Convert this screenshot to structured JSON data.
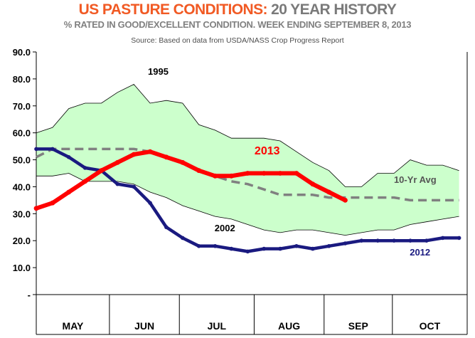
{
  "header": {
    "title_main": "US PASTURE CONDITIONS",
    "title_sep": ": ",
    "title_rest": "20 YEAR HISTORY",
    "subtitle": "% RATED IN GOOD/EXCELLENT CONDITION.  WEEK ENDING SEPTEMBER 8, 2013",
    "source": "Source:  Based on data from USDA/NASS Crop Progress Report"
  },
  "chart_data": {
    "type": "line",
    "ylim": [
      0,
      90
    ],
    "yticks": [
      {
        "v": 0,
        "label": "-"
      },
      {
        "v": 10,
        "label": "10.0"
      },
      {
        "v": 20,
        "label": "20.0"
      },
      {
        "v": 30,
        "label": "30.0"
      },
      {
        "v": 40,
        "label": "40.0"
      },
      {
        "v": 50,
        "label": "50.0"
      },
      {
        "v": 60,
        "label": "60.0"
      },
      {
        "v": 70,
        "label": "70.0"
      },
      {
        "v": 80,
        "label": "80.0"
      },
      {
        "v": 90,
        "label": "90.0"
      }
    ],
    "xlim": [
      0,
      26.5
    ],
    "months": [
      {
        "label": "MAY",
        "start": 0,
        "end": 4.5
      },
      {
        "label": "JUN",
        "start": 4.5,
        "end": 8.8
      },
      {
        "label": "JUL",
        "start": 8.8,
        "end": 13.4
      },
      {
        "label": "AUG",
        "start": 13.4,
        "end": 17.7
      },
      {
        "label": "SEP",
        "start": 17.7,
        "end": 21.9
      },
      {
        "label": "OCT",
        "start": 21.9,
        "end": 26.5
      }
    ],
    "range_band": {
      "max": [
        [
          0,
          60
        ],
        [
          1,
          62
        ],
        [
          2,
          69
        ],
        [
          3,
          71
        ],
        [
          4,
          71
        ],
        [
          5,
          75
        ],
        [
          6,
          78
        ],
        [
          7,
          71
        ],
        [
          8,
          72
        ],
        [
          9,
          71
        ],
        [
          10,
          63
        ],
        [
          11,
          61
        ],
        [
          12,
          58
        ],
        [
          13,
          58
        ],
        [
          14,
          58
        ],
        [
          15,
          57
        ],
        [
          16,
          53
        ],
        [
          17,
          49
        ],
        [
          18,
          46
        ],
        [
          19,
          40
        ],
        [
          20,
          40
        ],
        [
          21,
          45
        ],
        [
          22,
          45
        ],
        [
          23,
          50
        ],
        [
          24,
          48
        ],
        [
          25,
          48
        ],
        [
          26,
          46
        ]
      ],
      "min": [
        [
          0,
          44
        ],
        [
          1,
          44
        ],
        [
          2,
          45
        ],
        [
          3,
          42
        ],
        [
          4,
          42
        ],
        [
          5,
          42
        ],
        [
          6,
          41
        ],
        [
          7,
          38
        ],
        [
          8,
          36
        ],
        [
          9,
          33
        ],
        [
          10,
          31
        ],
        [
          11,
          29
        ],
        [
          12,
          28
        ],
        [
          13,
          26
        ],
        [
          14,
          24
        ],
        [
          15,
          23
        ],
        [
          16,
          24
        ],
        [
          17,
          24
        ],
        [
          18,
          23
        ],
        [
          19,
          22
        ],
        [
          20,
          23
        ],
        [
          21,
          24
        ],
        [
          22,
          24
        ],
        [
          23,
          26
        ],
        [
          24,
          27
        ],
        [
          25,
          28
        ],
        [
          26,
          29
        ]
      ]
    },
    "series": [
      {
        "name": "10-Yr Avg",
        "color": "#808080",
        "dashed": true,
        "points": [
          [
            0,
            51
          ],
          [
            1,
            54
          ],
          [
            2,
            54
          ],
          [
            3,
            54
          ],
          [
            4,
            54
          ],
          [
            5,
            54
          ],
          [
            6,
            54
          ],
          [
            7,
            53
          ],
          [
            8,
            51
          ],
          [
            9,
            49
          ],
          [
            10,
            46
          ],
          [
            11,
            44
          ],
          [
            12,
            42
          ],
          [
            13,
            41
          ],
          [
            14,
            39
          ],
          [
            15,
            37
          ],
          [
            16,
            37
          ],
          [
            17,
            37
          ],
          [
            18,
            36
          ],
          [
            19,
            36
          ],
          [
            20,
            36
          ],
          [
            21,
            36
          ],
          [
            22,
            36
          ],
          [
            23,
            35
          ],
          [
            24,
            35
          ],
          [
            25,
            35
          ],
          [
            26,
            35
          ]
        ]
      },
      {
        "name": "2012",
        "color": "#1a1a80",
        "dashed": false,
        "points": [
          [
            0,
            54
          ],
          [
            1,
            54
          ],
          [
            2,
            51
          ],
          [
            3,
            47
          ],
          [
            4,
            46
          ],
          [
            5,
            41
          ],
          [
            6,
            40
          ],
          [
            7,
            34
          ],
          [
            8,
            25
          ],
          [
            9,
            21
          ],
          [
            10,
            18
          ],
          [
            11,
            18
          ],
          [
            12,
            17
          ],
          [
            13,
            16
          ],
          [
            14,
            17
          ],
          [
            15,
            17
          ],
          [
            16,
            18
          ],
          [
            17,
            17
          ],
          [
            18,
            18
          ],
          [
            19,
            19
          ],
          [
            20,
            20
          ],
          [
            21,
            20
          ],
          [
            22,
            20
          ],
          [
            23,
            20
          ],
          [
            24,
            20
          ],
          [
            25,
            21
          ],
          [
            26,
            21
          ]
        ]
      },
      {
        "name": "2013",
        "color": "#ff0000",
        "dashed": false,
        "points": [
          [
            0,
            32
          ],
          [
            1,
            34
          ],
          [
            2,
            38
          ],
          [
            3,
            42
          ],
          [
            4,
            46
          ],
          [
            5,
            49
          ],
          [
            6,
            52
          ],
          [
            7,
            53
          ],
          [
            8,
            51
          ],
          [
            9,
            49
          ],
          [
            10,
            46
          ],
          [
            11,
            44
          ],
          [
            12,
            44
          ],
          [
            13,
            45
          ],
          [
            14,
            45
          ],
          [
            15,
            45
          ],
          [
            16,
            45
          ],
          [
            17,
            41
          ],
          [
            18,
            38
          ],
          [
            19,
            35
          ]
        ]
      }
    ],
    "annotations": [
      {
        "text": "1995",
        "x": 7.5,
        "y": 81.5,
        "color": "#000000",
        "size": 13
      },
      {
        "text": "2013",
        "x": 14.2,
        "y": 52,
        "color": "#ff0000",
        "size": 16
      },
      {
        "text": "10-Yr Avg",
        "x": 23.3,
        "y": 41.5,
        "color": "#555555",
        "size": 13
      },
      {
        "text": "2002",
        "x": 11.6,
        "y": 23.5,
        "color": "#000000",
        "size": 13
      },
      {
        "text": "2012",
        "x": 23.6,
        "y": 14.5,
        "color": "#1a1a80",
        "size": 13
      }
    ],
    "band_fill": "#ccffcc"
  }
}
